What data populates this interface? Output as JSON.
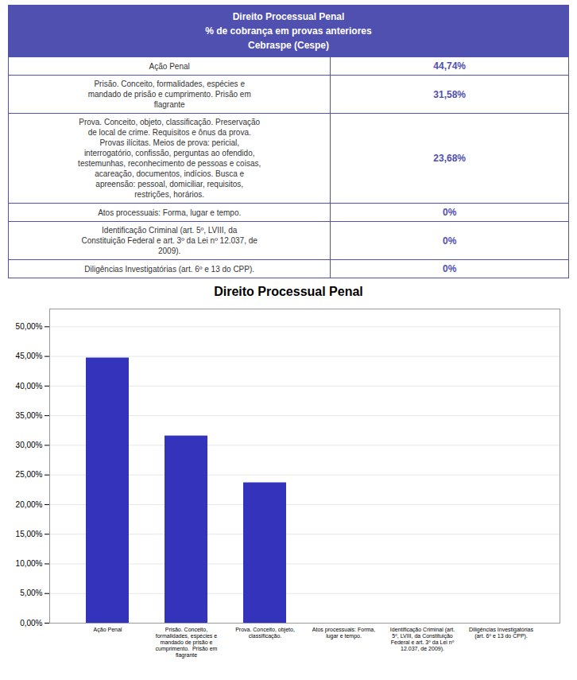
{
  "chart_data": [
    {
      "type": "table",
      "title": "Direito Processual Penal\n% de cobrança em provas anteriores\nCebraspe (Cespe)",
      "categories": [
        "Ação Penal",
        "Prisão. Conceito, formalidades, espécies e\nmandado de prisão e cumprimento.  Prisão em\nflagrante",
        "Prova. Conceito, objeto, classificação.  Preservação\nde local de crime.  Requisitos e ônus da prova.\nProvas ilícitas. Meios de prova: pericial,\ninterrogatório, confissão, perguntas ao ofendido,\ntestemunhas, reconhecimento de pessoas e coisas,\nacareação, documentos, indícios. Busca e\napreensão: pessoal, domiciliar, requisitos,\nrestrições, horários.",
        "Atos processuais: Forma, lugar e tempo.",
        "Identificação Criminal (art. 5º, LVIII, da\nConstituição Federal e art. 3º da Lei nº 12.037, de\n2009).",
        "Diligências Investigatórias (art. 6º e 13 do CPP)."
      ],
      "values": [
        44.74,
        31.58,
        23.68,
        0.0,
        0.0,
        0.0
      ],
      "value_labels": [
        "44,74%",
        "31,58%",
        "23,68%",
        "0%",
        "0%",
        "0%"
      ],
      "data_labels": true,
      "color": "#5050b0"
    },
    {
      "type": "bar",
      "title": "Direito Processual Penal",
      "categories": [
        "Ação Penal",
        "Prisão. Conceito,\nformalidades, espécies e\nmandado de prisão e\ncumprimento.  Prisão em\nflagrante",
        "Prova. Conceito, objeto,\nclassificação.",
        "Atos processuais: Forma,\nlugar e tempo.",
        "Identificação Criminal (art.\n5º, LVIII, da Constituição\nFederal e art. 3º da Lei nº\n12.037, de 2009).",
        "Diligências Investigatórias\n(art. 6º e 13 do CPP)."
      ],
      "values": [
        44.74,
        31.58,
        23.68,
        0.0,
        0.0,
        0.0
      ],
      "color": "#3333bb",
      "ylim": [
        0,
        53
      ],
      "yticks": [
        {
          "value": 0,
          "label": "0,00%"
        },
        {
          "value": 5,
          "label": "5,00%"
        },
        {
          "value": 10,
          "label": "10,00%"
        },
        {
          "value": 15,
          "label": "15,00%"
        },
        {
          "value": 20,
          "label": "20,00%"
        },
        {
          "value": 25,
          "label": "25,00%"
        },
        {
          "value": 30,
          "label": "30,00%"
        },
        {
          "value": 35,
          "label": "35,00%"
        },
        {
          "value": 40,
          "label": "40,00%"
        },
        {
          "value": 45,
          "label": "45,00%"
        },
        {
          "value": 50,
          "label": "50,00%"
        }
      ],
      "grid": true
    }
  ]
}
